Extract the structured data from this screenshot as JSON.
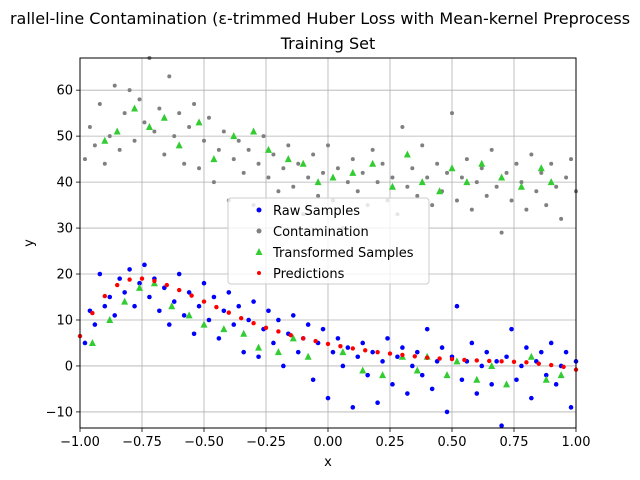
{
  "chart_data": {
    "type": "scatter",
    "title_line1": "rallel-line Contamination (ε-trimmed Huber Loss with Mean-kernel Preprocess",
    "title_line2": "Training Set",
    "xlabel": "x",
    "ylabel": "y",
    "xlim": [
      -1.0,
      1.0
    ],
    "ylim": [
      -13.5,
      67
    ],
    "x_ticks": [
      -1.0,
      -0.75,
      -0.5,
      -0.25,
      0.0,
      0.25,
      0.5,
      0.75,
      1.0
    ],
    "x_tick_labels": [
      "−1.00",
      "−0.75",
      "−0.50",
      "−0.25",
      "0.00",
      "0.25",
      "0.50",
      "0.75",
      "1.00"
    ],
    "y_ticks": [
      -10,
      0,
      10,
      20,
      30,
      40,
      50,
      60
    ],
    "y_tick_labels": [
      "−10",
      "0",
      "10",
      "20",
      "30",
      "40",
      "50",
      "60"
    ],
    "grid": true,
    "legend_placement": "center",
    "legend": [
      "Raw Samples",
      "Contamination",
      "Transformed Samples",
      "Predictions"
    ],
    "colors": {
      "raw": "#0000ff",
      "contamination": "#808080",
      "transformed": "#33cc33",
      "predictions": "#ff0000"
    },
    "series": [
      {
        "name": "Raw Samples",
        "points": [
          [
            -0.98,
            5
          ],
          [
            -0.96,
            12
          ],
          [
            -0.94,
            9
          ],
          [
            -0.92,
            20
          ],
          [
            -0.9,
            13
          ],
          [
            -0.88,
            15
          ],
          [
            -0.86,
            11
          ],
          [
            -0.84,
            19
          ],
          [
            -0.82,
            16
          ],
          [
            -0.8,
            21
          ],
          [
            -0.78,
            13
          ],
          [
            -0.76,
            18
          ],
          [
            -0.74,
            22
          ],
          [
            -0.72,
            15
          ],
          [
            -0.7,
            19
          ],
          [
            -0.68,
            12
          ],
          [
            -0.66,
            17
          ],
          [
            -0.64,
            9
          ],
          [
            -0.62,
            14
          ],
          [
            -0.6,
            20
          ],
          [
            -0.58,
            11
          ],
          [
            -0.56,
            16
          ],
          [
            -0.54,
            7
          ],
          [
            -0.52,
            13
          ],
          [
            -0.5,
            18
          ],
          [
            -0.48,
            10
          ],
          [
            -0.46,
            15
          ],
          [
            -0.44,
            6
          ],
          [
            -0.42,
            12
          ],
          [
            -0.4,
            16
          ],
          [
            -0.38,
            9
          ],
          [
            -0.36,
            13
          ],
          [
            -0.34,
            3
          ],
          [
            -0.32,
            10
          ],
          [
            -0.3,
            14
          ],
          [
            -0.28,
            2
          ],
          [
            -0.26,
            8
          ],
          [
            -0.24,
            12
          ],
          [
            -0.22,
            5
          ],
          [
            -0.2,
            10
          ],
          [
            -0.18,
            0
          ],
          [
            -0.16,
            7
          ],
          [
            -0.14,
            11
          ],
          [
            -0.12,
            3
          ],
          [
            -0.1,
            6
          ],
          [
            -0.08,
            9
          ],
          [
            -0.06,
            -3
          ],
          [
            -0.04,
            5
          ],
          [
            -0.02,
            8
          ],
          [
            0.0,
            -7
          ],
          [
            0.02,
            3
          ],
          [
            0.04,
            6
          ],
          [
            0.06,
            0
          ],
          [
            0.08,
            4
          ],
          [
            0.1,
            -9
          ],
          [
            0.12,
            2
          ],
          [
            0.14,
            5
          ],
          [
            0.16,
            -2
          ],
          [
            0.18,
            3
          ],
          [
            0.2,
            -8
          ],
          [
            0.22,
            1
          ],
          [
            0.24,
            6
          ],
          [
            0.26,
            -4
          ],
          [
            0.28,
            2
          ],
          [
            0.3,
            4
          ],
          [
            0.32,
            -6
          ],
          [
            0.34,
            0
          ],
          [
            0.36,
            3
          ],
          [
            0.38,
            -2
          ],
          [
            0.4,
            8
          ],
          [
            0.42,
            -5
          ],
          [
            0.44,
            1
          ],
          [
            0.46,
            4
          ],
          [
            0.48,
            -10
          ],
          [
            0.5,
            2
          ],
          [
            0.52,
            13
          ],
          [
            0.54,
            -3
          ],
          [
            0.56,
            1
          ],
          [
            0.58,
            5
          ],
          [
            0.6,
            -6
          ],
          [
            0.62,
            0
          ],
          [
            0.64,
            3
          ],
          [
            0.66,
            -4
          ],
          [
            0.68,
            1
          ],
          [
            0.7,
            -13
          ],
          [
            0.72,
            2
          ],
          [
            0.74,
            8
          ],
          [
            0.76,
            -3
          ],
          [
            0.78,
            0
          ],
          [
            0.8,
            4
          ],
          [
            0.82,
            -7
          ],
          [
            0.84,
            1
          ],
          [
            0.86,
            3
          ],
          [
            0.88,
            -2
          ],
          [
            0.9,
            5
          ],
          [
            0.92,
            -4
          ],
          [
            0.94,
            0
          ],
          [
            0.96,
            3
          ],
          [
            0.98,
            -9
          ],
          [
            1.0,
            1
          ]
        ]
      },
      {
        "name": "Contamination",
        "points": [
          [
            -0.98,
            45
          ],
          [
            -0.96,
            52
          ],
          [
            -0.94,
            48
          ],
          [
            -0.92,
            57
          ],
          [
            -0.9,
            44
          ],
          [
            -0.88,
            50
          ],
          [
            -0.86,
            61
          ],
          [
            -0.84,
            47
          ],
          [
            -0.82,
            55
          ],
          [
            -0.8,
            60
          ],
          [
            -0.78,
            49
          ],
          [
            -0.76,
            58
          ],
          [
            -0.74,
            53
          ],
          [
            -0.72,
            67
          ],
          [
            -0.7,
            51
          ],
          [
            -0.68,
            56
          ],
          [
            -0.66,
            46
          ],
          [
            -0.64,
            63
          ],
          [
            -0.62,
            50
          ],
          [
            -0.6,
            55
          ],
          [
            -0.58,
            44
          ],
          [
            -0.56,
            52
          ],
          [
            -0.54,
            57
          ],
          [
            -0.52,
            43
          ],
          [
            -0.5,
            49
          ],
          [
            -0.48,
            54
          ],
          [
            -0.46,
            40
          ],
          [
            -0.44,
            47
          ],
          [
            -0.42,
            51
          ],
          [
            -0.4,
            36
          ],
          [
            -0.38,
            45
          ],
          [
            -0.36,
            49
          ],
          [
            -0.34,
            42
          ],
          [
            -0.32,
            47
          ],
          [
            -0.3,
            35
          ],
          [
            -0.28,
            44
          ],
          [
            -0.26,
            50
          ],
          [
            -0.24,
            41
          ],
          [
            -0.22,
            46
          ],
          [
            -0.2,
            38
          ],
          [
            -0.18,
            43
          ],
          [
            -0.16,
            48
          ],
          [
            -0.14,
            39
          ],
          [
            -0.12,
            44
          ],
          [
            -0.1,
            33
          ],
          [
            -0.08,
            41
          ],
          [
            -0.06,
            46
          ],
          [
            -0.04,
            37
          ],
          [
            -0.02,
            42
          ],
          [
            0.0,
            48
          ],
          [
            0.02,
            36
          ],
          [
            0.04,
            43
          ],
          [
            0.06,
            30
          ],
          [
            0.08,
            40
          ],
          [
            0.1,
            45
          ],
          [
            0.12,
            38
          ],
          [
            0.14,
            42
          ],
          [
            0.16,
            35
          ],
          [
            0.18,
            47
          ],
          [
            0.2,
            40
          ],
          [
            0.22,
            44
          ],
          [
            0.24,
            36
          ],
          [
            0.26,
            41
          ],
          [
            0.28,
            33
          ],
          [
            0.3,
            52
          ],
          [
            0.32,
            39
          ],
          [
            0.34,
            43
          ],
          [
            0.36,
            37
          ],
          [
            0.38,
            48
          ],
          [
            0.4,
            41
          ],
          [
            0.42,
            35
          ],
          [
            0.44,
            44
          ],
          [
            0.46,
            38
          ],
          [
            0.48,
            42
          ],
          [
            0.5,
            55
          ],
          [
            0.52,
            36
          ],
          [
            0.54,
            41
          ],
          [
            0.56,
            45
          ],
          [
            0.58,
            34
          ],
          [
            0.6,
            40
          ],
          [
            0.62,
            43
          ],
          [
            0.64,
            37
          ],
          [
            0.66,
            47
          ],
          [
            0.68,
            39
          ],
          [
            0.7,
            29
          ],
          [
            0.72,
            42
          ],
          [
            0.74,
            36
          ],
          [
            0.76,
            44
          ],
          [
            0.78,
            40
          ],
          [
            0.8,
            34
          ],
          [
            0.82,
            46
          ],
          [
            0.84,
            38
          ],
          [
            0.86,
            42
          ],
          [
            0.88,
            35
          ],
          [
            0.9,
            44
          ],
          [
            0.92,
            39
          ],
          [
            0.94,
            32
          ],
          [
            0.96,
            41
          ],
          [
            0.98,
            45
          ],
          [
            1.0,
            38
          ]
        ]
      },
      {
        "name": "Transformed Samples",
        "points": [
          [
            -0.95,
            5
          ],
          [
            -0.9,
            49
          ],
          [
            -0.88,
            10
          ],
          [
            -0.85,
            51
          ],
          [
            -0.82,
            14
          ],
          [
            -0.78,
            56
          ],
          [
            -0.76,
            17
          ],
          [
            -0.72,
            52
          ],
          [
            -0.7,
            18
          ],
          [
            -0.66,
            54
          ],
          [
            -0.63,
            13
          ],
          [
            -0.6,
            48
          ],
          [
            -0.56,
            11
          ],
          [
            -0.52,
            53
          ],
          [
            -0.5,
            9
          ],
          [
            -0.46,
            45
          ],
          [
            -0.42,
            8
          ],
          [
            -0.38,
            50
          ],
          [
            -0.34,
            7
          ],
          [
            -0.3,
            51
          ],
          [
            -0.28,
            4
          ],
          [
            -0.24,
            47
          ],
          [
            -0.2,
            3
          ],
          [
            -0.16,
            45
          ],
          [
            -0.14,
            6
          ],
          [
            -0.1,
            44
          ],
          [
            -0.08,
            2
          ],
          [
            -0.04,
            40
          ],
          [
            0.02,
            41
          ],
          [
            0.06,
            3
          ],
          [
            0.1,
            42
          ],
          [
            0.14,
            -1
          ],
          [
            0.18,
            44
          ],
          [
            0.22,
            -2
          ],
          [
            0.26,
            39
          ],
          [
            0.3,
            2
          ],
          [
            0.32,
            46
          ],
          [
            0.36,
            -1
          ],
          [
            0.38,
            40
          ],
          [
            0.4,
            2
          ],
          [
            0.45,
            38
          ],
          [
            0.48,
            -2
          ],
          [
            0.5,
            43
          ],
          [
            0.52,
            1
          ],
          [
            0.56,
            40
          ],
          [
            0.6,
            -3
          ],
          [
            0.62,
            44
          ],
          [
            0.66,
            0
          ],
          [
            0.7,
            41
          ],
          [
            0.72,
            -4
          ],
          [
            0.78,
            39
          ],
          [
            0.82,
            2
          ],
          [
            0.86,
            43
          ],
          [
            0.88,
            -3
          ],
          [
            0.9,
            40
          ],
          [
            0.94,
            -2
          ]
        ]
      }
    ],
    "prediction_curve": {
      "name": "Predictions",
      "x": [
        -1.0,
        -0.95,
        -0.9,
        -0.85,
        -0.8,
        -0.75,
        -0.7,
        -0.65,
        -0.6,
        -0.55,
        -0.5,
        -0.45,
        -0.4,
        -0.35,
        -0.3,
        -0.25,
        -0.2,
        -0.15,
        -0.1,
        -0.05,
        0.0,
        0.05,
        0.1,
        0.15,
        0.2,
        0.25,
        0.3,
        0.35,
        0.4,
        0.45,
        0.5,
        0.55,
        0.6,
        0.65,
        0.7,
        0.75,
        0.8,
        0.85,
        0.9,
        0.95,
        1.0
      ],
      "y": [
        6.5,
        11.5,
        15.2,
        17.6,
        18.8,
        19.0,
        18.5,
        17.6,
        16.5,
        15.3,
        14.0,
        12.8,
        11.6,
        10.4,
        9.3,
        8.3,
        7.5,
        6.7,
        6.0,
        5.4,
        4.8,
        4.3,
        3.8,
        3.4,
        3.0,
        2.7,
        2.4,
        2.1,
        1.8,
        1.6,
        1.5,
        1.3,
        1.2,
        1.1,
        1.0,
        0.9,
        0.8,
        0.5,
        0.2,
        -0.2,
        -0.8
      ]
    }
  }
}
